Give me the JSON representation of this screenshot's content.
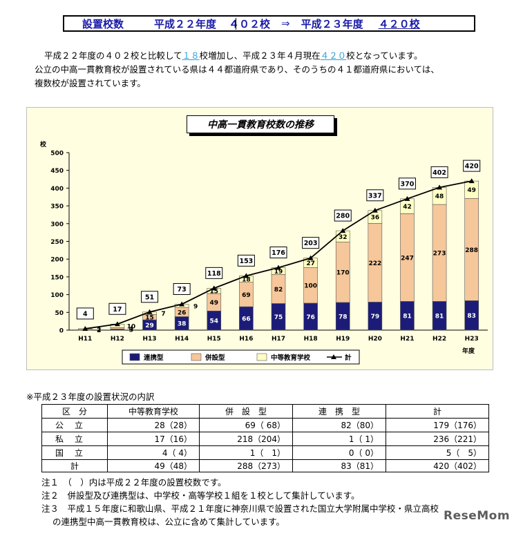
{
  "header": {
    "title": "設置校数",
    "prev_year": "平成２２年度",
    "prev_count": "４０２校",
    "arrow": "⇒",
    "cur_year": "平成２３年度",
    "cur_count": "４２０校"
  },
  "intro": {
    "l1_a": "平成２２年度の４０２校と比較して",
    "l1_b": "１８",
    "l1_c": "校増加し、平成２３年４月現在",
    "l1_d": "４２０",
    "l1_e": "校となっています。",
    "l2": "公立の中高一貫教育校が設置されている県は４４都道府県であり、そのうちの４１都道府県においては、",
    "l3": "複数校が設置されています。"
  },
  "chart_data": {
    "type": "bar",
    "title": "中高一貫教育校数の推移",
    "ylabel": "校",
    "xlabel": "年度",
    "ylim": [
      0,
      500
    ],
    "yticks": [
      0,
      50,
      100,
      150,
      200,
      250,
      300,
      350,
      400,
      450,
      500
    ],
    "stacked": true,
    "categories": [
      "H11",
      "H12",
      "H13",
      "H14",
      "H15",
      "H16",
      "H17",
      "H18",
      "H19",
      "H20",
      "H21",
      "H22",
      "H23"
    ],
    "series": [
      {
        "name": "連携型",
        "color": "#1c1c78",
        "values": [
          0,
          3,
          29,
          38,
          54,
          66,
          75,
          76,
          78,
          79,
          81,
          81,
          83
        ]
      },
      {
        "name": "併設型",
        "color": "#f6c79a",
        "values": [
          2,
          4,
          15,
          26,
          49,
          69,
          82,
          100,
          170,
          222,
          247,
          273,
          288
        ]
      },
      {
        "name": "中等教育学校",
        "color": "#ffffc4",
        "values": [
          2,
          10,
          7,
          9,
          15,
          18,
          19,
          27,
          32,
          36,
          42,
          48,
          49
        ]
      }
    ],
    "totals": {
      "name": "計",
      "values": [
        4,
        17,
        51,
        73,
        118,
        153,
        176,
        203,
        280,
        337,
        370,
        402,
        420
      ]
    },
    "segment_labels": {
      "連携型": [
        "",
        "3",
        "29",
        "38",
        "54",
        "66",
        "75",
        "76",
        "78",
        "79",
        "81",
        "81",
        "83"
      ],
      "併設型": [
        "2",
        "4",
        "15",
        "26",
        "49",
        "69",
        "82",
        "100",
        "170",
        "222",
        "247",
        "273",
        "288"
      ],
      "中等教育学校": [
        "2",
        "10",
        "7",
        "9",
        "15",
        "18",
        "19",
        "27",
        "32",
        "36",
        "42",
        "48",
        "49"
      ]
    },
    "legend_position": "bottom"
  },
  "table": {
    "title": "※平成２３年度の設置状況の内訳",
    "headers": [
      "区　分",
      "中等教育学校",
      "併　設　型",
      "連　携　型",
      "計"
    ],
    "rows": [
      {
        "cat": "公立",
        "cells": [
          "28（28）",
          "69（ 68）",
          "82（80）",
          "179（176）"
        ]
      },
      {
        "cat": "私立",
        "cells": [
          "17（16）",
          "218（204）",
          "1（ 1）",
          "236（221）"
        ]
      },
      {
        "cat": "国立",
        "cells": [
          "4（ 4）",
          "1（　1）",
          "0（ 0）",
          "5（　5）"
        ]
      }
    ],
    "total_row": {
      "cat": "計",
      "cells": [
        "49（48）",
        "288（273）",
        "83（81）",
        "420（402）"
      ]
    }
  },
  "notes": {
    "n1": "注１　（　）内は平成２２年度の設置校数です。",
    "n2": "注２　併設型及び連携型は、中学校・高等学校１組を１校として集計しています。",
    "n3a": "注３　平成１５年度に和歌山県、平成２１年度に神奈川県で設置された国立大学附属中学校・県立高校",
    "n3b": "の連携型中高一貫教育校は、公立に含めて集計しています。"
  },
  "watermark": "ReseMom"
}
